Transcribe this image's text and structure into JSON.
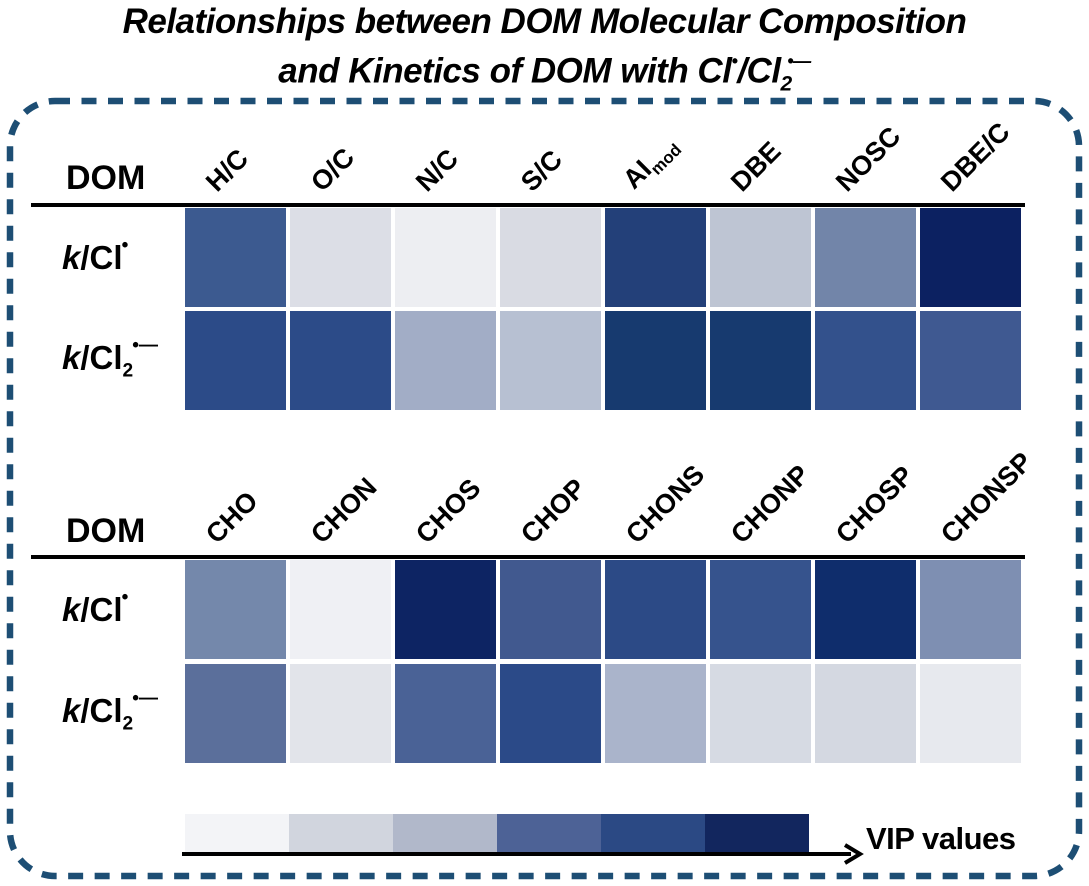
{
  "title": {
    "line1": "Relationships between DOM Molecular Composition",
    "line2_prefix": "and Kinetics of DOM with Cl",
    "line2_radical1": "•",
    "line2_slash": "/Cl",
    "line2_sub2": "2",
    "line2_radical2": "•—"
  },
  "legend": {
    "label": "VIP values",
    "colors": [
      "#f3f4f7",
      "#d1d5de",
      "#b1b8ca",
      "#4d6296",
      "#2b4984",
      "#12265e"
    ],
    "meaning": "VIP values increase from light to dark"
  },
  "panel": {
    "border_color": "#1d4e74"
  },
  "chart_data": [
    {
      "type": "heatmap",
      "corner_label": "DOM",
      "columns": [
        {
          "main": "H/C"
        },
        {
          "main": "O/C"
        },
        {
          "main": "N/C"
        },
        {
          "main": "S/C"
        },
        {
          "main": "AI",
          "sub": "mod"
        },
        {
          "main": "DBE"
        },
        {
          "main": "NOSC"
        },
        {
          "main": "DBE/C"
        }
      ],
      "rows": [
        {
          "name": "k/Cl•",
          "k": "k",
          "body": "/Cl",
          "sub": "",
          "sup": "•"
        },
        {
          "name": "k/Cl2•−",
          "k": "k",
          "body": "/Cl",
          "sub": "2",
          "sup": "•—"
        }
      ],
      "cell_colors": [
        [
          "#3c5a90",
          "#dcdee6",
          "#edeef2",
          "#d9dbe3",
          "#234079",
          "#bec5d3",
          "#7285a9",
          "#0c2161"
        ],
        [
          "#2c4b88",
          "#2c4b88",
          "#a2adc6",
          "#b7c0d2",
          "#173a6f",
          "#173a6f",
          "#33518c",
          "#3f5991"
        ]
      ]
    },
    {
      "type": "heatmap",
      "corner_label": "DOM",
      "columns": [
        {
          "main": "CHO"
        },
        {
          "main": "CHON"
        },
        {
          "main": "CHOS"
        },
        {
          "main": "CHOP"
        },
        {
          "main": "CHONS"
        },
        {
          "main": "CHONP"
        },
        {
          "main": "CHOSP"
        },
        {
          "main": "CHONSP"
        }
      ],
      "rows": [
        {
          "name": "k/Cl•",
          "k": "k",
          "body": "/Cl",
          "sub": "",
          "sup": "•"
        },
        {
          "name": "k/Cl2•−",
          "k": "k",
          "body": "/Cl",
          "sub": "2",
          "sup": "•—"
        }
      ],
      "cell_colors": [
        [
          "#7488ab",
          "#eff0f4",
          "#0d2463",
          "#41598f",
          "#2c4a86",
          "#36538d",
          "#0f2d6c",
          "#7e8fb2"
        ],
        [
          "#5b6f9b",
          "#e2e4ea",
          "#4a6296",
          "#2b4a88",
          "#aab4cb",
          "#d6dae3",
          "#d4d8e1",
          "#e7e9ee"
        ]
      ]
    }
  ]
}
